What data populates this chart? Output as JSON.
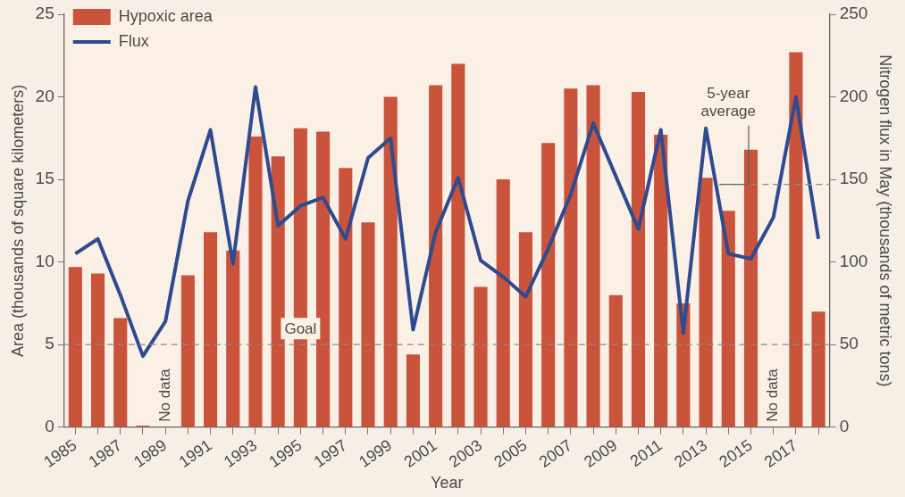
{
  "chart_data": {
    "type": "bar",
    "xlabel": "Year",
    "ylabel": "Area (thousands of square kilometers)",
    "y2label": "Nitrogen flux in May (thousands of metric tons)",
    "categories": [
      "1985",
      null,
      "1987",
      null,
      "1989",
      null,
      "1991",
      null,
      "1993",
      null,
      "1995",
      null,
      "1997",
      null,
      "1999",
      null,
      "2001",
      null,
      "2003",
      null,
      "2005",
      null,
      "2007",
      null,
      "2009",
      null,
      "2011",
      null,
      "2013",
      null,
      "2015",
      null,
      "2017",
      null
    ],
    "series": [
      {
        "name": "Hypoxic area",
        "color": "#c9533b",
        "values": [
          9.7,
          9.3,
          6.6,
          0.1,
          null,
          9.2,
          11.8,
          10.7,
          17.6,
          16.4,
          18.1,
          17.9,
          15.7,
          12.4,
          20.0,
          4.4,
          20.7,
          22.0,
          8.5,
          15.0,
          11.8,
          17.2,
          20.5,
          20.7,
          8.0,
          20.3,
          17.7,
          7.5,
          15.1,
          13.1,
          16.8,
          null,
          22.7,
          7.0
        ]
      },
      {
        "name": "Flux",
        "type": "line",
        "axis": "y2",
        "color": "#2f4b8f",
        "values": [
          105,
          114,
          80,
          43,
          64,
          137,
          180,
          99,
          206,
          122,
          134,
          139,
          114,
          163,
          175,
          59,
          118,
          151,
          101,
          91,
          79,
          108,
          141,
          184,
          152,
          120,
          180,
          57,
          181,
          105,
          102,
          127,
          200,
          114
        ]
      }
    ],
    "ylim": [
      0,
      25
    ],
    "yticks": [
      0,
      5,
      10,
      15,
      20,
      25
    ],
    "y2lim": [
      0,
      250
    ],
    "y2ticks": [
      0,
      50,
      100,
      150,
      200,
      250
    ],
    "ref_lines": [
      {
        "axis": "y",
        "value": 5,
        "label": "Goal",
        "line_style": "dashed",
        "color": "#8a8a8a"
      },
      {
        "axis": "y2",
        "value": 147,
        "label": "5-year average",
        "line_style": "dashed",
        "color": "#8a8a8a"
      }
    ],
    "annotations": [
      "No data",
      "No data"
    ],
    "legend": "top left",
    "grid": false,
    "marker": "none",
    "line_style": "solid"
  }
}
